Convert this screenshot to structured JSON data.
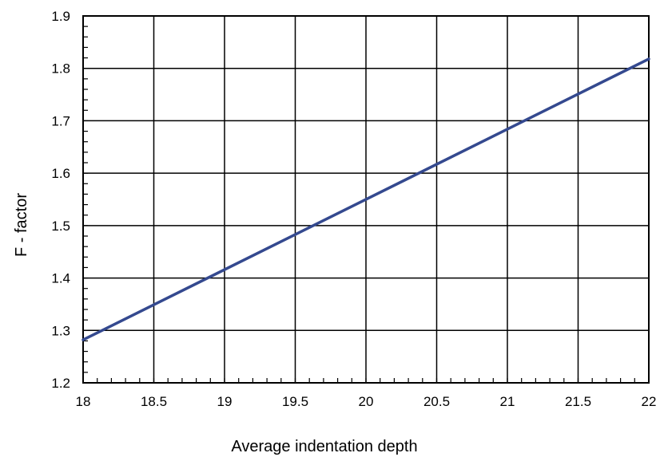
{
  "chart_data": {
    "type": "line",
    "title": "",
    "xlabel": "Average indentation depth",
    "ylabel": "F - factor",
    "xlim": [
      18,
      22
    ],
    "ylim": [
      1.2,
      1.9
    ],
    "x_ticks": [
      "18",
      "18.5",
      "19",
      "19.5",
      "20",
      "20.5",
      "21",
      "21.5",
      "22"
    ],
    "y_ticks": [
      "1.2",
      "1.3",
      "1.4",
      "1.5",
      "1.6",
      "1.7",
      "1.8",
      "1.9"
    ],
    "grid": true,
    "series": [
      {
        "color": "#34498f",
        "x": [
          18,
          22
        ],
        "y": [
          1.282,
          1.818
        ]
      }
    ]
  }
}
